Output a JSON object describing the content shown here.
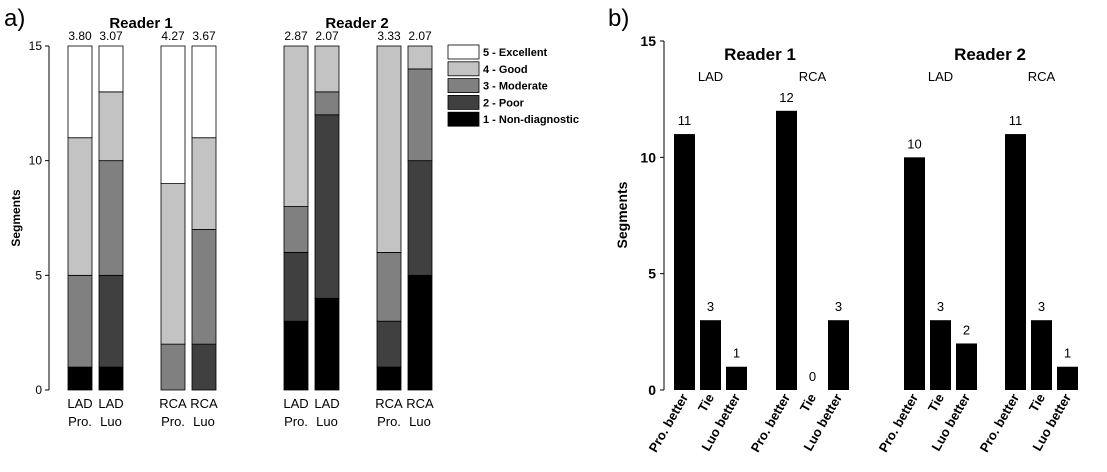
{
  "chart_data": [
    {
      "panel_label": "a)",
      "type": "stacked-bar",
      "ylabel": "Segments",
      "ylim": [
        0,
        15
      ],
      "yticks": [
        0,
        5,
        10,
        15
      ],
      "legend": {
        "placement": "top-right",
        "entries": [
          {
            "label": "5 - Excellent",
            "color": "#ffffff"
          },
          {
            "label": "4 - Good",
            "color": "#c3c3c3"
          },
          {
            "label": "3 - Moderate",
            "color": "#808080"
          },
          {
            "label": "2 - Poor",
            "color": "#404040"
          },
          {
            "label": "1 - Non-diagnostic",
            "color": "#000000"
          }
        ]
      },
      "series_order": [
        "1 - Non-diagnostic",
        "2 - Poor",
        "3 - Moderate",
        "4 - Good",
        "5 - Excellent"
      ],
      "series_colors": [
        "#000000",
        "#404040",
        "#808080",
        "#c3c3c3",
        "#ffffff"
      ],
      "groups": [
        {
          "title": "Reader 1",
          "bars": [
            {
              "label_top": "LAD",
              "label_bottom": "Pro.",
              "mean": "3.80",
              "counts": [
                1,
                0,
                4,
                6,
                4
              ]
            },
            {
              "label_top": "LAD",
              "label_bottom": "Luo",
              "mean": "3.07",
              "counts": [
                1,
                4,
                5,
                3,
                2
              ]
            },
            {
              "label_top": "RCA",
              "label_bottom": "Pro.",
              "mean": "4.27",
              "counts": [
                0,
                0,
                2,
                7,
                6
              ]
            },
            {
              "label_top": "RCA",
              "label_bottom": "Luo",
              "mean": "3.67",
              "counts": [
                0,
                2,
                5,
                4,
                4
              ]
            }
          ]
        },
        {
          "title": "Reader 2",
          "bars": [
            {
              "label_top": "LAD",
              "label_bottom": "Pro.",
              "mean": "2.87",
              "counts": [
                3,
                3,
                2,
                7,
                0
              ]
            },
            {
              "label_top": "LAD",
              "label_bottom": "Luo",
              "mean": "2.07",
              "counts": [
                4,
                8,
                1,
                2,
                0
              ]
            },
            {
              "label_top": "RCA",
              "label_bottom": "Pro.",
              "mean": "3.33",
              "counts": [
                1,
                2,
                3,
                9,
                0
              ]
            },
            {
              "label_top": "RCA",
              "label_bottom": "Luo",
              "mean": "2.07",
              "counts": [
                5,
                5,
                4,
                1,
                0
              ]
            }
          ]
        }
      ]
    },
    {
      "panel_label": "b)",
      "type": "bar",
      "ylabel": "Segments",
      "ylim": [
        0,
        15
      ],
      "yticks": [
        0,
        5,
        10,
        15
      ],
      "bar_color": "#000000",
      "groups": [
        {
          "reader": "Reader 1",
          "vessel": "LAD",
          "categories": [
            "Pro. better",
            "Tie",
            "Luo better"
          ],
          "values": [
            11,
            3,
            1
          ]
        },
        {
          "reader": "Reader 1",
          "vessel": "RCA",
          "categories": [
            "Pro. better",
            "Tie",
            "Luo better"
          ],
          "values": [
            12,
            0,
            3
          ]
        },
        {
          "reader": "Reader 2",
          "vessel": "LAD",
          "categories": [
            "Pro. better",
            "Tie",
            "Luo better"
          ],
          "values": [
            10,
            3,
            2
          ]
        },
        {
          "reader": "Reader 2",
          "vessel": "RCA",
          "categories": [
            "Pro. better",
            "Tie",
            "Luo better"
          ],
          "values": [
            11,
            3,
            1
          ]
        }
      ],
      "reader_titles": [
        "Reader 1",
        "Reader 2"
      ]
    }
  ]
}
